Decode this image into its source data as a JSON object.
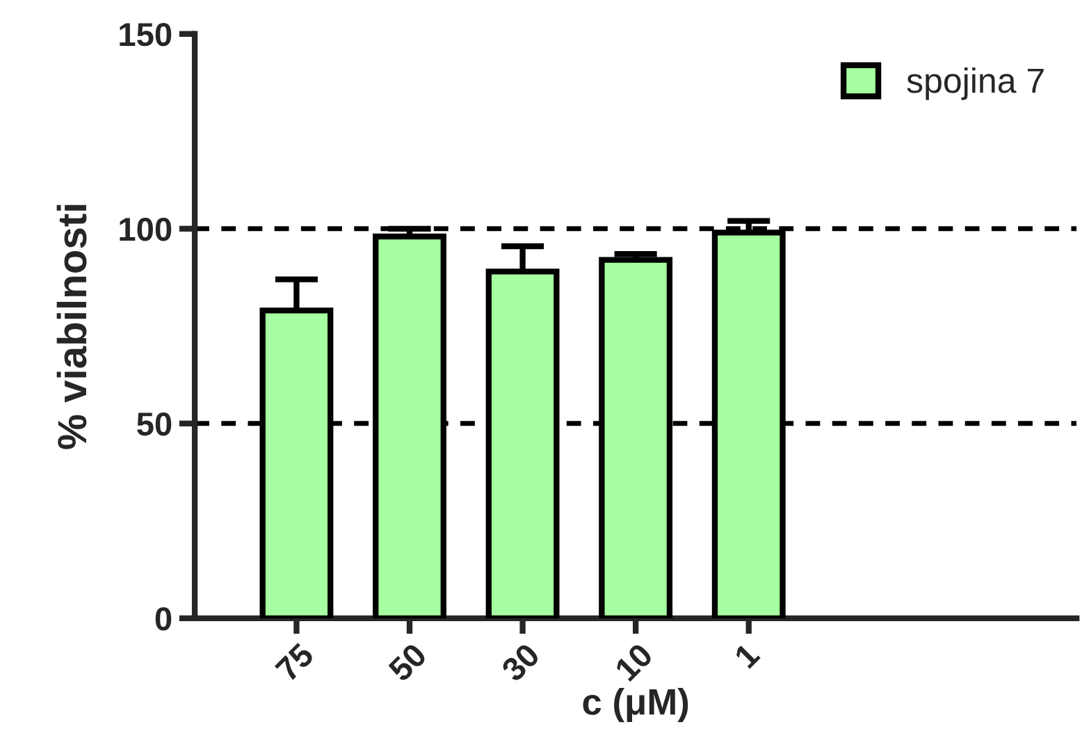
{
  "chart_data": {
    "type": "bar",
    "xlabel": "c (μM)",
    "ylabel": "% viabilnosti",
    "categories": [
      "75",
      "50",
      "30",
      "10",
      "1"
    ],
    "series": [
      {
        "name": "spojina 7",
        "color": "#a6ffa0",
        "values": [
          79,
          98,
          89,
          92,
          99
        ],
        "errors": [
          8,
          2,
          6.5,
          1.5,
          3
        ]
      }
    ],
    "ylim": [
      0,
      150
    ],
    "yticks": [
      0,
      50,
      100,
      150
    ],
    "ref_lines": [
      {
        "axis": "y",
        "value": 50,
        "line_style": "dashed"
      },
      {
        "axis": "y",
        "value": 100,
        "line_style": "dashed"
      }
    ],
    "legend": "top right",
    "grid": false
  }
}
